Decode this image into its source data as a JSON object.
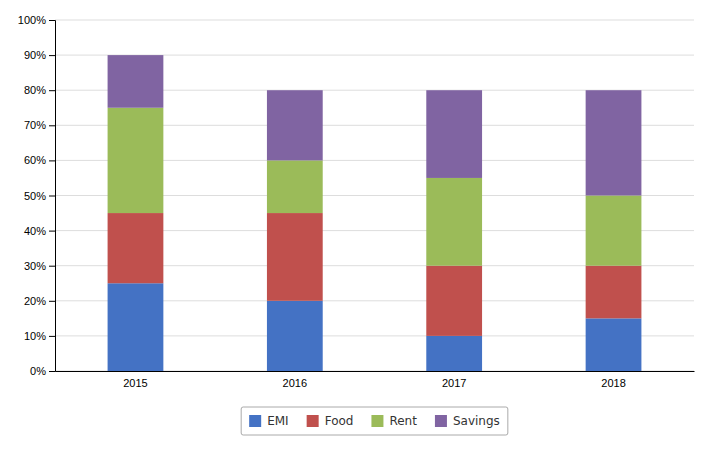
{
  "chart_data": {
    "type": "bar",
    "stacked": true,
    "categories": [
      "2015",
      "2016",
      "2017",
      "2018"
    ],
    "series": [
      {
        "name": "EMI",
        "color": "#4472C4",
        "values": [
          25,
          20,
          10,
          15
        ]
      },
      {
        "name": "Food",
        "color": "#C0504D",
        "values": [
          20,
          25,
          20,
          15
        ]
      },
      {
        "name": "Rent",
        "color": "#9BBB59",
        "values": [
          30,
          15,
          25,
          20
        ]
      },
      {
        "name": "Savings",
        "color": "#8064A2",
        "values": [
          15,
          20,
          25,
          30
        ]
      }
    ],
    "ylim": [
      0,
      100
    ],
    "yticks": [
      {
        "value": 0,
        "label": "0%"
      },
      {
        "value": 10,
        "label": "10%"
      },
      {
        "value": 20,
        "label": "20%"
      },
      {
        "value": 30,
        "label": "30%"
      },
      {
        "value": 40,
        "label": "40%"
      },
      {
        "value": 50,
        "label": "50%"
      },
      {
        "value": 60,
        "label": "60%"
      },
      {
        "value": 70,
        "label": "70%"
      },
      {
        "value": 80,
        "label": "80%"
      },
      {
        "value": 90,
        "label": "90%"
      },
      {
        "value": 100,
        "label": "100%"
      }
    ],
    "grid": true,
    "legend": "bottom"
  }
}
